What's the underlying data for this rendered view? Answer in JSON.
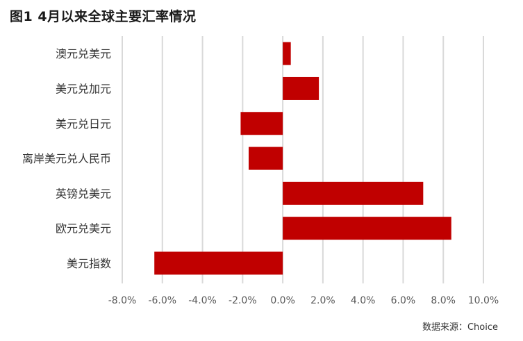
{
  "figure": {
    "title": "图1  4月以来全球主要汇率情况",
    "source": "数据来源：Choice"
  },
  "colors": {
    "bar": "#C00000",
    "grid": "#D9D9D9",
    "axis_text": "#595959",
    "label_text": "#333333"
  },
  "chart_data": {
    "type": "bar",
    "orientation": "horizontal",
    "categories": [
      "澳元兑美元",
      "美元兑加元",
      "美元兑日元",
      "离岸美元兑人民币",
      "英镑兑美元",
      "欧元兑美元",
      "美元指数"
    ],
    "values": [
      0.4,
      1.8,
      -2.1,
      -1.7,
      7.0,
      8.4,
      -6.4
    ],
    "value_unit": "%",
    "xlim": [
      -8.0,
      10.0
    ],
    "x_ticks": [
      -8.0,
      -6.0,
      -4.0,
      -2.0,
      0.0,
      2.0,
      4.0,
      6.0,
      8.0,
      10.0
    ],
    "x_tick_labels": [
      "-8.0%",
      "-6.0%",
      "-4.0%",
      "-2.0%",
      "0.0%",
      "2.0%",
      "4.0%",
      "6.0%",
      "8.0%",
      "10.0%"
    ],
    "grid": true,
    "legend": false
  }
}
